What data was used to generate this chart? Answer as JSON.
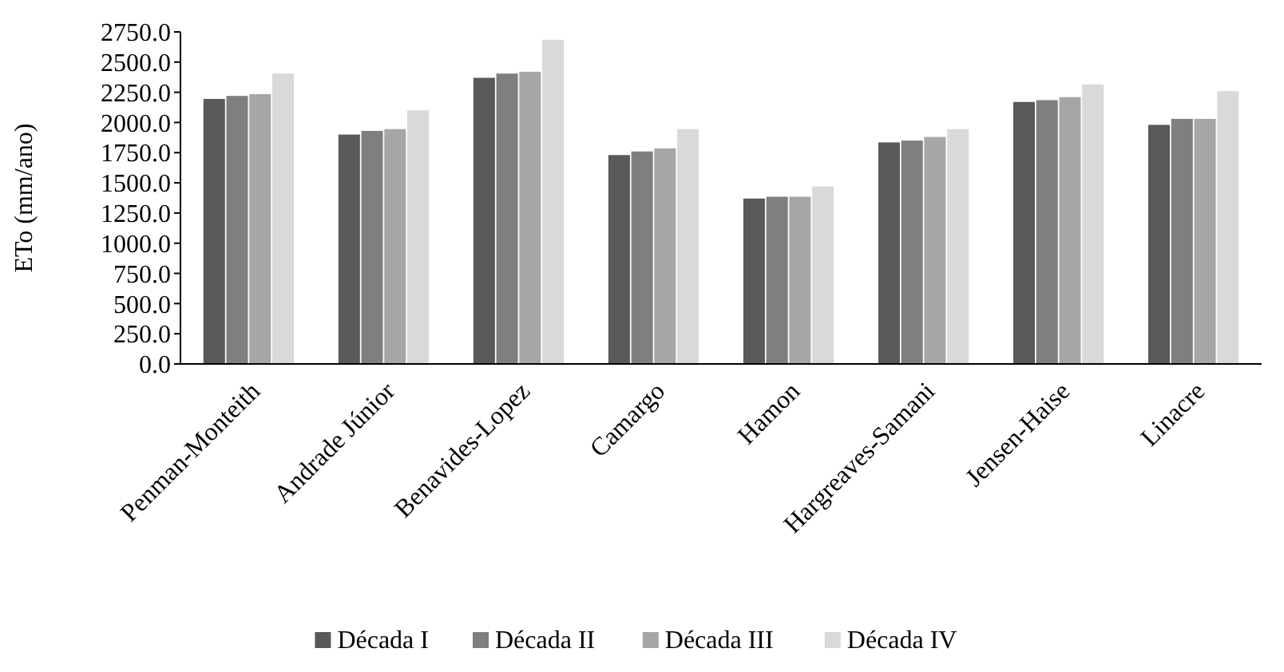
{
  "chart_data": {
    "type": "bar",
    "ylabel": "ETo (mm/ano)",
    "categories": [
      "Penman-Monteith",
      "Andrade Júnior",
      "Benavides-Lopez",
      "Camargo",
      "Hamon",
      "Hargreaves-Samani",
      "Jensen-Haise",
      "Linacre"
    ],
    "series": [
      {
        "name": "Década I",
        "color": "#595959",
        "values": [
          2195,
          1900,
          2370,
          1730,
          1370,
          1835,
          2170,
          1980
        ]
      },
      {
        "name": "Década II",
        "color": "#7f7f7f",
        "values": [
          2220,
          1930,
          2405,
          1760,
          1385,
          1850,
          2185,
          2030
        ]
      },
      {
        "name": "Década III",
        "color": "#a6a6a6",
        "values": [
          2235,
          1945,
          2420,
          1785,
          1385,
          1880,
          2210,
          2030
        ]
      },
      {
        "name": "Década IV",
        "color": "#d9d9d9",
        "values": [
          2405,
          2100,
          2685,
          1945,
          1470,
          1945,
          2315,
          2260
        ]
      }
    ],
    "ylim": [
      0,
      2750
    ],
    "yticks": [
      {
        "value": 0,
        "label": "0.0"
      },
      {
        "value": 250,
        "label": "250.0"
      },
      {
        "value": 500,
        "label": "500.0"
      },
      {
        "value": 750,
        "label": "750.0"
      },
      {
        "value": 1000,
        "label": "1000.0"
      },
      {
        "value": 1250,
        "label": "1250.0"
      },
      {
        "value": 1500,
        "label": "1500.0"
      },
      {
        "value": 1750,
        "label": "1750.0"
      },
      {
        "value": 2000,
        "label": "2000.0"
      },
      {
        "value": 2250,
        "label": "2250.0"
      },
      {
        "value": 2500,
        "label": "2500.0"
      },
      {
        "value": 2750,
        "label": "2750.0"
      }
    ],
    "grid": false,
    "legend": "bottom"
  }
}
